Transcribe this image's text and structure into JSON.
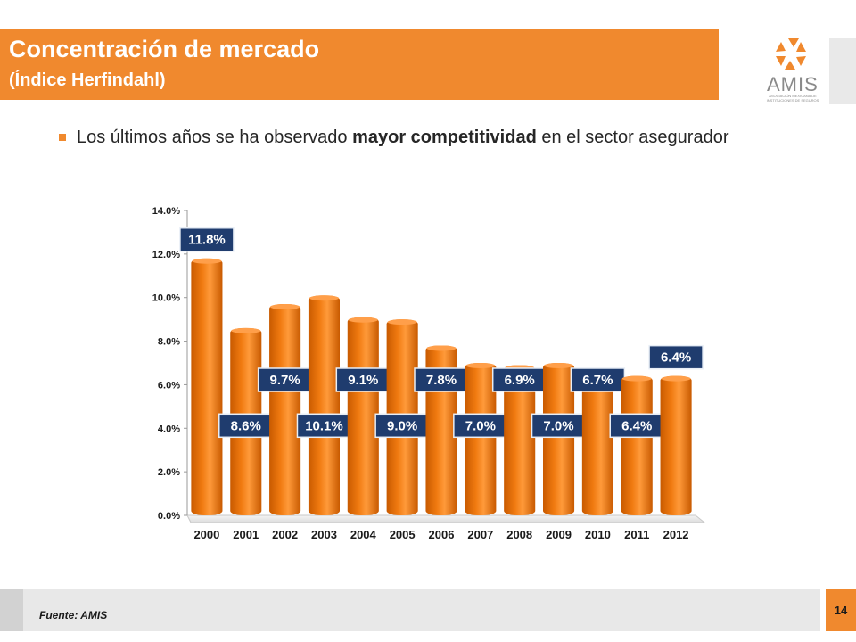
{
  "header": {
    "title": "Concentración de mercado",
    "subtitle": "(Índice Herfindahl)"
  },
  "logo": {
    "name": "AMIS",
    "tagline": "ASOCIACIÓN MEXICANA DE INSTITUCIONES DE SEGUROS",
    "icon": "amis-logo-icon",
    "color": "#f0892e"
  },
  "bullet": {
    "text_before": "Los últimos años se ha observado ",
    "text_bold": "mayor competitividad",
    "text_after": " en el sector asegurador"
  },
  "chart_data": {
    "type": "bar",
    "categories": [
      "2000",
      "2001",
      "2002",
      "2003",
      "2004",
      "2005",
      "2006",
      "2007",
      "2008",
      "2009",
      "2010",
      "2011",
      "2012"
    ],
    "values": [
      11.8,
      8.6,
      9.7,
      10.1,
      9.1,
      9.0,
      7.8,
      7.0,
      6.9,
      7.0,
      6.7,
      6.4,
      6.4
    ],
    "labels": [
      "11.8%",
      "8.6%",
      "9.7%",
      "10.1%",
      "9.1%",
      "9.0%",
      "7.8%",
      "7.0%",
      "6.9%",
      "7.0%",
      "6.7%",
      "6.4%",
      "6.4%"
    ],
    "ylim": [
      0,
      14
    ],
    "yticks": [
      "0.0%",
      "2.0%",
      "4.0%",
      "6.0%",
      "8.0%",
      "10.0%",
      "12.0%",
      "14.0%"
    ],
    "bar_color": "#f07a10",
    "label_color": "#1f3c6e",
    "grid": false,
    "legend": false
  },
  "footer": {
    "source": "Fuente: AMIS",
    "page": "14"
  },
  "colors": {
    "accent": "#f0892e"
  }
}
